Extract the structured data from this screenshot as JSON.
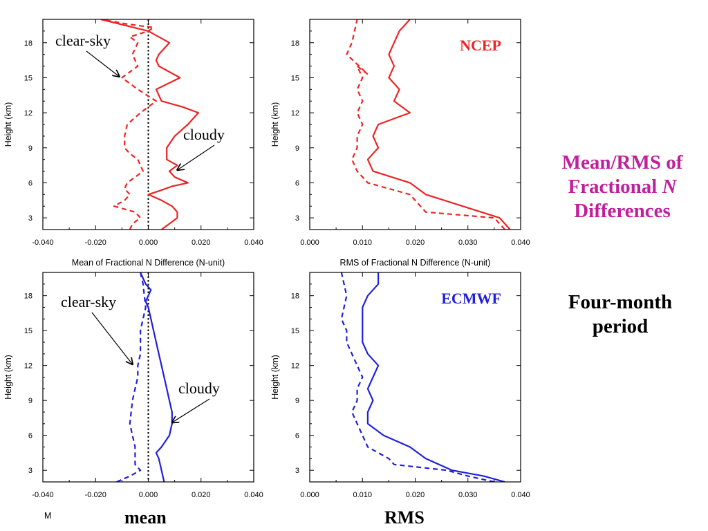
{
  "side_title": {
    "line1": "Mean/RMS of",
    "line2_pre": "Fractional ",
    "line2_italic": "N",
    "line3": "Differences"
  },
  "side_period": {
    "line1": "Four-month",
    "line2": "period"
  },
  "footer": {
    "mean": "mean",
    "rms": "RMS",
    "clipped_label": "M"
  },
  "colors": {
    "ncep": "#ee2222",
    "ecmwf": "#1f1fdd",
    "title_magenta": "#c0209c"
  },
  "chart_data": [
    {
      "id": "ncep-mean",
      "type": "line",
      "xlabel": "Mean of Fractional N Difference (N-unit)",
      "ylabel": "Height (km)",
      "xlim": [
        -0.04,
        0.04
      ],
      "ylim": [
        2,
        20
      ],
      "xticks": [
        "-0.040",
        "-0.020",
        "0.000",
        "0.020",
        "0.040"
      ],
      "xtick_values": [
        -0.04,
        -0.02,
        0,
        0.02,
        0.04
      ],
      "yticks": [
        "3",
        "6",
        "9",
        "12",
        "15",
        "18"
      ],
      "ytick_values": [
        3,
        6,
        9,
        12,
        15,
        18
      ],
      "color": "#ee2222",
      "zero_line": true,
      "annotations": [
        {
          "text": "clear-sky",
          "x": -0.011,
          "y": 15.1
        },
        {
          "text": "cloudy",
          "x": 0.011,
          "y": 7.1
        }
      ],
      "series": [
        {
          "name": "cloudy",
          "dash": false,
          "x": [
            0.005,
            0.008,
            0.011,
            0.011,
            0.009,
            0.005,
            0.0,
            0.004,
            0.009,
            0.015,
            0.01,
            0.008,
            0.011,
            0.007,
            0.007,
            0.01,
            0.015,
            0.019,
            0.013,
            0.005,
            0.003,
            0.012,
            0.004,
            0.003,
            0.004,
            0.008,
            0.0,
            -0.018
          ],
          "y": [
            2,
            2.5,
            3,
            3.5,
            4,
            4.5,
            5,
            5.3,
            5.7,
            6,
            6.5,
            7,
            7.5,
            8,
            9,
            10,
            11,
            12,
            12.5,
            13,
            14,
            15,
            16,
            16.5,
            17,
            18,
            19,
            20
          ]
        },
        {
          "name": "clear-sky",
          "dash": true,
          "x": [
            -0.007,
            -0.006,
            -0.003,
            -0.005,
            -0.013,
            -0.009,
            -0.007,
            -0.009,
            -0.008,
            -0.002,
            -0.004,
            -0.007,
            -0.009,
            -0.009,
            -0.008,
            -0.003,
            0.003,
            -0.004,
            -0.01,
            -0.004,
            -0.006,
            -0.004,
            -0.007,
            0.0,
            0.002,
            -0.008,
            -0.018
          ],
          "y": [
            2,
            2.5,
            3,
            3.5,
            4,
            4.5,
            5,
            5.5,
            6,
            7,
            8,
            8.5,
            9,
            10,
            11,
            12,
            13,
            14,
            15,
            16,
            17,
            18,
            18.5,
            19,
            19.3,
            19.6,
            20
          ]
        }
      ]
    },
    {
      "id": "ncep-rms",
      "type": "line",
      "xlabel": "RMS of Fractional N Difference (N-unit)",
      "ylabel": "Height (km)",
      "xlim": [
        0,
        0.04
      ],
      "ylim": [
        2,
        20
      ],
      "xticks": [
        "0.000",
        "0.010",
        "0.020",
        "0.030",
        "0.040"
      ],
      "xtick_values": [
        0,
        0.01,
        0.02,
        0.03,
        0.04
      ],
      "yticks": [
        "3",
        "6",
        "9",
        "12",
        "15",
        "18"
      ],
      "ytick_values": [
        3,
        6,
        9,
        12,
        15,
        18
      ],
      "color": "#ee2222",
      "label": "NCEP",
      "series": [
        {
          "name": "cloudy",
          "dash": false,
          "x": [
            0.038,
            0.036,
            0.029,
            0.022,
            0.019,
            0.012,
            0.011,
            0.012,
            0.013,
            0.012,
            0.013,
            0.019,
            0.016,
            0.017,
            0.015,
            0.016,
            0.015,
            0.016,
            0.017,
            0.019
          ],
          "y": [
            2,
            3,
            4,
            5,
            6,
            7,
            8,
            8.5,
            9,
            10,
            11,
            12,
            13,
            14,
            15,
            16,
            17,
            18,
            19,
            20
          ]
        },
        {
          "name": "clear-sky",
          "dash": true,
          "x": [
            0.037,
            0.035,
            0.022,
            0.021,
            0.019,
            0.011,
            0.009,
            0.008,
            0.009,
            0.009,
            0.01,
            0.009,
            0.01,
            0.009,
            0.01,
            0.009,
            0.011,
            0.007,
            0.008,
            0.009
          ],
          "y": [
            2,
            3,
            3.5,
            4,
            5,
            6,
            7,
            8,
            9,
            10,
            11,
            12,
            13,
            14,
            15,
            16,
            15.3,
            17,
            18,
            20
          ]
        }
      ]
    },
    {
      "id": "ecmwf-mean",
      "type": "line",
      "xlabel": "",
      "ylabel": "Height (km)",
      "xlim": [
        -0.04,
        0.04
      ],
      "ylim": [
        2,
        20
      ],
      "xticks": [
        "-0.040",
        "-0.020",
        "0.000",
        "0.020",
        "0.040"
      ],
      "xtick_values": [
        -0.04,
        -0.02,
        0,
        0.02,
        0.04
      ],
      "yticks": [
        "3",
        "6",
        "9",
        "12",
        "15",
        "18"
      ],
      "ytick_values": [
        3,
        6,
        9,
        12,
        15,
        18
      ],
      "color": "#1f1fdd",
      "zero_line": true,
      "annotations": [
        {
          "text": "clear-sky",
          "x": -0.006,
          "y": 12.1
        },
        {
          "text": "cloudy",
          "x": 0.009,
          "y": 7.1
        }
      ],
      "series": [
        {
          "name": "cloudy",
          "dash": false,
          "x": [
            0.006,
            0.005,
            0.004,
            0.003,
            0.005,
            0.008,
            0.009,
            0.009,
            0.008,
            0.007,
            0.006,
            0.005,
            0.004,
            0.003,
            0.002,
            0.001,
            0.0,
            -0.001,
            0.0,
            0.001,
            -0.001,
            -0.002,
            -0.003
          ],
          "y": [
            2,
            3,
            4,
            4.5,
            5,
            6,
            7,
            8,
            9,
            10,
            11,
            12,
            13,
            14,
            15,
            16,
            17,
            17.5,
            18,
            18.5,
            19,
            19.5,
            20
          ]
        },
        {
          "name": "clear-sky",
          "dash": true,
          "x": [
            -0.012,
            -0.007,
            -0.003,
            -0.005,
            -0.005,
            -0.005,
            -0.006,
            -0.007,
            -0.006,
            -0.005,
            -0.004,
            -0.004,
            -0.003,
            -0.003,
            -0.002,
            -0.001,
            -0.002,
            -0.003
          ],
          "y": [
            2,
            2.5,
            3,
            3.5,
            4,
            5,
            6,
            7,
            9,
            10,
            11,
            12,
            13,
            15,
            16,
            17,
            19,
            20
          ]
        }
      ]
    },
    {
      "id": "ecmwf-rms",
      "type": "line",
      "xlabel": "",
      "ylabel": "Height (km)",
      "xlim": [
        0,
        0.04
      ],
      "ylim": [
        2,
        20
      ],
      "xticks": [
        "0.000",
        "0.010",
        "0.020",
        "0.030",
        "0.040"
      ],
      "xtick_values": [
        0,
        0.01,
        0.02,
        0.03,
        0.04
      ],
      "yticks": [
        "3",
        "6",
        "9",
        "12",
        "15",
        "18"
      ],
      "ytick_values": [
        3,
        6,
        9,
        12,
        15,
        18
      ],
      "color": "#1f1fdd",
      "label": "ECMWF",
      "series": [
        {
          "name": "cloudy",
          "dash": false,
          "x": [
            0.037,
            0.033,
            0.027,
            0.022,
            0.019,
            0.014,
            0.011,
            0.011,
            0.012,
            0.011,
            0.012,
            0.013,
            0.011,
            0.01,
            0.01,
            0.01,
            0.01,
            0.011,
            0.013,
            0.013
          ],
          "y": [
            2,
            2.5,
            3,
            4,
            5,
            6,
            7,
            8,
            9,
            10,
            11,
            12,
            13,
            14,
            15,
            16,
            17,
            18,
            19,
            20
          ]
        },
        {
          "name": "clear-sky",
          "dash": true,
          "x": [
            0.035,
            0.03,
            0.026,
            0.016,
            0.015,
            0.011,
            0.01,
            0.009,
            0.008,
            0.009,
            0.009,
            0.01,
            0.009,
            0.008,
            0.007,
            0.007,
            0.006,
            0.007,
            0.006
          ],
          "y": [
            2,
            2.5,
            3,
            3.5,
            4,
            5,
            6,
            7,
            8,
            9,
            10,
            11,
            12,
            13,
            14,
            15,
            16,
            18,
            20
          ]
        }
      ]
    }
  ]
}
